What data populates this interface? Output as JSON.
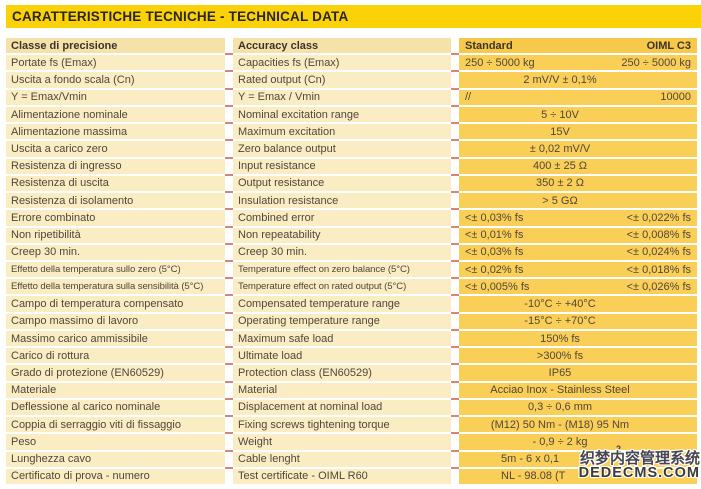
{
  "header": {
    "title": "CARATTERISTICHE TECNICHE - TECHNICAL DATA"
  },
  "table": {
    "value_column_headers": {
      "standard": "Standard",
      "oiml": "OIML C3"
    },
    "rows": [
      {
        "it": "Classe di precisione",
        "en": "Accuracy class",
        "type": "header",
        "std": "Standard",
        "oiml": "OIML C3"
      },
      {
        "it": "Portate fs (Emax)",
        "en": "Capacities fs (Emax)",
        "type": "pair",
        "std": "250 ÷ 5000 kg",
        "oiml": "250 ÷ 5000 kg"
      },
      {
        "it": "Uscita a fondo scala (Cn)",
        "en": "Rated output (Cn)",
        "type": "center",
        "value": "2 mV/V ± 0,1%"
      },
      {
        "it": "Y = Emax/Vmin",
        "en": "Y = Emax / Vmin",
        "type": "pair",
        "std": "//",
        "oiml": "10000"
      },
      {
        "it": "Alimentazione nominale",
        "en": "Nominal excitation range",
        "type": "center",
        "value": "5 ÷ 10V"
      },
      {
        "it": "Alimentazione massima",
        "en": "Maximum excitation",
        "type": "center",
        "value": "15V"
      },
      {
        "it": "Uscita a carico zero",
        "en": "Zero balance output",
        "type": "center",
        "value": "± 0,02 mV/V"
      },
      {
        "it": "Resistenza di ingresso",
        "en": "Input resistance",
        "type": "center",
        "value": "400 ± 25 Ω"
      },
      {
        "it": "Resistenza di uscita",
        "en": "Output resistance",
        "type": "center",
        "value": "350 ± 2 Ω"
      },
      {
        "it": "Resistenza di isolamento",
        "en": "Insulation resistance",
        "type": "center",
        "value": "> 5 GΩ"
      },
      {
        "it": "Errore combinato",
        "en": "Combined error",
        "type": "pair",
        "std": "<± 0,03% fs",
        "oiml": "<± 0,022% fs"
      },
      {
        "it": "Non ripetibilità",
        "en": "Non repeatability",
        "type": "pair",
        "std": "<± 0,01% fs",
        "oiml": "<± 0,008% fs"
      },
      {
        "it": "Creep 30 min.",
        "en": "Creep 30 min.",
        "type": "pair",
        "std": "<± 0,03% fs",
        "oiml": "<± 0,024% fs"
      },
      {
        "it": "Effetto della temperatura sullo zero (5°C)",
        "en": "Temperature effect on zero balance (5°C)",
        "type": "pair",
        "std": "<± 0,02% fs",
        "oiml": "<± 0,018% fs",
        "compact": true
      },
      {
        "it": "Effetto della temperatura sulla sensibilità (5°C)",
        "en": "Temperature effect on rated output (5°C)",
        "type": "pair",
        "std": "<± 0,005% fs",
        "oiml": "<± 0,026% fs",
        "compact": true
      },
      {
        "it": "Campo di temperatura compensato",
        "en": "Compensated temperature range",
        "type": "center",
        "value": "-10°C ÷ +40°C"
      },
      {
        "it": "Campo massimo di lavoro",
        "en": "Operating temperature range",
        "type": "center",
        "value": "-15°C ÷ +70°C"
      },
      {
        "it": "Massimo carico ammissibile",
        "en": "Maximum safe load",
        "type": "center",
        "value": "150% fs"
      },
      {
        "it": "Carico di rottura",
        "en": "Ultimate load",
        "type": "center",
        "value": ">300% fs"
      },
      {
        "it": "Grado di protezione (EN60529)",
        "en": "Protection class (EN60529)",
        "type": "center",
        "value": "IP65"
      },
      {
        "it": "Materiale",
        "en": "Material",
        "type": "center",
        "value": "Acciao Inox - Stainless Steel"
      },
      {
        "it": "Deflessione al carico nominale",
        "en": "Displacement at nominal load",
        "type": "center",
        "value": "0,3 ÷ 0,6 mm"
      },
      {
        "it": "Coppia di serraggio viti di fissaggio",
        "en": "Fixing screws tightening torque",
        "type": "center",
        "value": "(M12) 50 Nm - (M18) 95 Nm"
      },
      {
        "it": "Peso",
        "en": "Weight",
        "type": "center",
        "value": "- 0,9 ÷ 2 kg"
      },
      {
        "it": "Lunghezza cavo",
        "en": "Cable lenght",
        "type": "indent",
        "value": "5m - 6 x 0,1"
      },
      {
        "it": "Certificato di prova - numero",
        "en": "Test certificate - OIML R60",
        "type": "indent",
        "value": "NL - 98.08 (T"
      }
    ]
  },
  "watermark": {
    "line1": "织梦内容管理系统",
    "line2": "DEDECMS.COM",
    "superscript": "2"
  },
  "colors": {
    "header_bar": "#fad207",
    "label_cell": "#faecc3",
    "label_header_cell": "#f5e2a8",
    "value_cell": "#facf58",
    "value_header_cell": "#f7c94a",
    "row_tick": "#c0452f",
    "text": "#51463b"
  }
}
